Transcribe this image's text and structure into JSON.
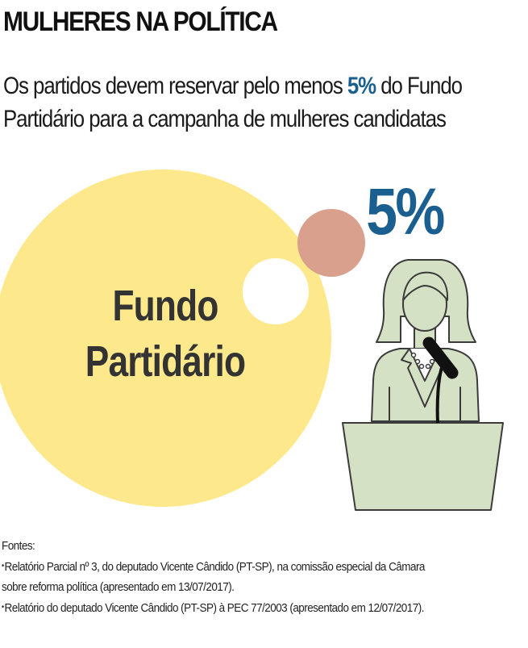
{
  "header": {
    "title": "MULHERES NA POLÍTICA",
    "subtitle_line1_before": "Os partidos devem reservar pelo menos ",
    "subtitle_highlight": "5%",
    "subtitle_line1_after": " do Fundo",
    "subtitle_line2": "Partidário para a campanha de mulheres candidatas"
  },
  "illustration": {
    "big_circle_line1": "Fundo",
    "big_circle_line2": "Partidário",
    "share_label": "5%",
    "share_value_percent": 5,
    "icon": "woman-at-podium-with-microphone"
  },
  "colors": {
    "fund_circle": "#fde88b",
    "share_circle": "#d9a08d",
    "highlight_blue": "#1a5f8f",
    "figure_fill": "#d5e1c4",
    "figure_stroke": "#3b3b3b",
    "microphone": "#111111"
  },
  "sources": {
    "heading": "Fontes:",
    "bullet_symbol": "•",
    "item1_line1": "Relatório Parcial nº 3, do deputado Vicente Cândido (PT-SP), na comissão especial da Câmara",
    "item1_line2": "sobre reforma política (apresentado em 13/07/2017).",
    "item2": "Relatório do deputado Vicente Cândido (PT-SP) à PEC 77/2003 (apresentado em 12/07/2017)."
  }
}
